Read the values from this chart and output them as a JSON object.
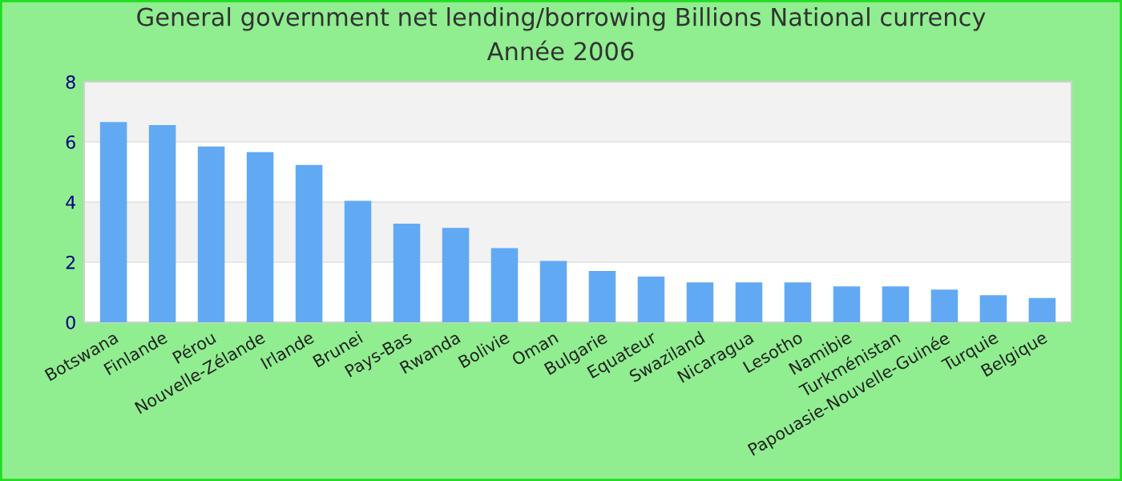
{
  "chart_data": {
    "type": "bar",
    "title": "General government net lending/borrowing Billions National currency",
    "subtitle": "Année 2006",
    "categories": [
      "Botswana",
      "Finlande",
      "Pérou",
      "Nouvelle-Zélande",
      "Irlande",
      "Brunei",
      "Pays-Bas",
      "Rwanda",
      "Bolivie",
      "Oman",
      "Bulgarie",
      "Equateur",
      "Swaziland",
      "Nicaragua",
      "Lesotho",
      "Namibie",
      "Turkménistan",
      "Papouasie-Nouvelle-Guinée",
      "Turquie",
      "Belgique"
    ],
    "values": [
      6.66,
      6.56,
      5.85,
      5.66,
      5.23,
      4.04,
      3.28,
      3.14,
      2.47,
      2.04,
      1.71,
      1.52,
      1.33,
      1.33,
      1.33,
      1.19,
      1.19,
      1.09,
      0.9,
      0.81
    ],
    "color": "#62a9f4",
    "ylim": [
      0,
      8
    ],
    "yticks": [
      0,
      2,
      4,
      6,
      8
    ],
    "grid": "y",
    "legend": false
  }
}
